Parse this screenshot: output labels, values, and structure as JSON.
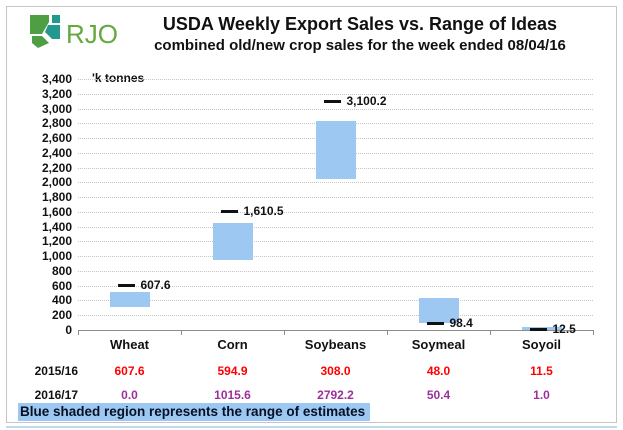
{
  "header": {
    "logo_text": "RJO",
    "title": "USDA Weekly Export Sales vs. Range of Ideas",
    "subtitle": "combined old/new crop sales for the week ended 08/04/16"
  },
  "chart_data": {
    "type": "bar",
    "title": "USDA Weekly Export Sales vs. Range of Ideas",
    "subtitle": "combined old/new crop sales for the week ended 08/04/16",
    "unit_label": "'k tonnes",
    "categories": [
      "Wheat",
      "Corn",
      "Soybeans",
      "Soymeal",
      "Soyoil"
    ],
    "estimate_range_low": [
      310,
      950,
      2050,
      100,
      0
    ],
    "estimate_range_high": [
      515,
      1450,
      2830,
      430,
      40
    ],
    "combined_actual": [
      607.6,
      1610.5,
      3100.2,
      98.4,
      12.5
    ],
    "combined_actual_labels": [
      "607.6",
      "1,610.5",
      "3,100.2",
      "98.4",
      "12.5"
    ],
    "ylim": [
      0,
      3400
    ],
    "ytick_step": 200,
    "grid": "horizontal-dotted",
    "legend": "none",
    "note": "Blue shaded region represents the range of estimates"
  },
  "table": {
    "rows": [
      {
        "label": "2015/16",
        "color": "#ff0000",
        "values": [
          "607.6",
          "594.9",
          "308.0",
          "48.0",
          "11.5"
        ]
      },
      {
        "label": "2016/17",
        "color": "#9b309b",
        "values": [
          "0.0",
          "1015.6",
          "2792.2",
          "50.4",
          "1.0"
        ]
      }
    ]
  },
  "footer": {
    "note": "Blue shaded region represents the range of estimates"
  },
  "colors": {
    "bar_blue": "#9cc8f2",
    "highlight_blue": "#9cc8f2",
    "series_2015_red": "#ff0000",
    "series_2016_purple": "#9b309b",
    "gridline": "#c6c6c6",
    "axis": "#8c8c8c",
    "frame_border": "#c5c5c5",
    "logo_green": "#4f9e43",
    "logo_teal": "#23988f",
    "logo_text_green": "#64a83e",
    "bottom_rule": "#bfd9ef"
  }
}
